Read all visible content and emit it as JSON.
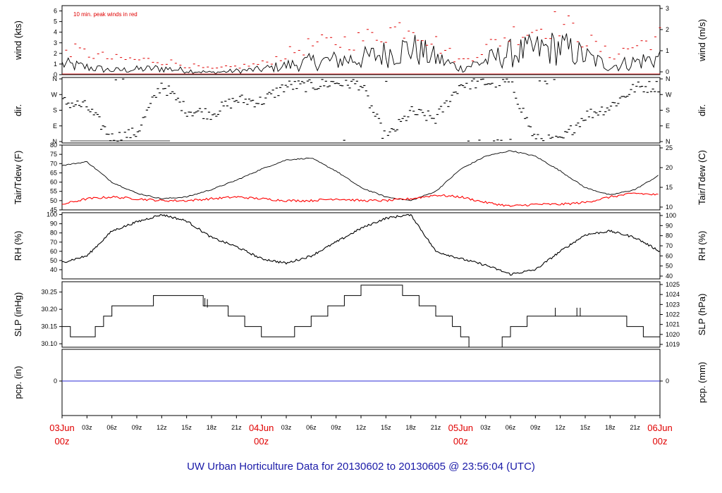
{
  "title": "UW Urban Horticulture Data for 20130602  to  20130605 @ 23:56:04  (UTC)",
  "annotation": "10 min. peak winds in red",
  "colors": {
    "main": "#000000",
    "peak": "#e00000",
    "dewpoint": "#ff0000",
    "precip": "#2b2bd6",
    "title": "#1a1aa8",
    "day": "#e00000"
  },
  "x_axis": {
    "hour_labels": [
      "03z",
      "06z",
      "09z",
      "12z",
      "15z",
      "18z",
      "21z"
    ],
    "days": [
      {
        "date": "03Jun",
        "time": "00z"
      },
      {
        "date": "04Jun",
        "time": "00z"
      },
      {
        "date": "05Jun",
        "time": "00z"
      },
      {
        "date": "06Jun",
        "time": "00z"
      }
    ]
  },
  "chart_data": [
    {
      "id": "wind",
      "type": "line",
      "ylabel_left": "wind (kts)",
      "ylabel_right": "wind (m/s)",
      "left_ticks": [
        "0",
        "1",
        "2",
        "3",
        "4",
        "5",
        "6"
      ],
      "right_ticks": [
        "0",
        "1",
        "2",
        "3"
      ],
      "ylim": [
        0,
        6.5
      ],
      "x_hours": [
        0,
        6,
        12,
        18,
        24,
        30,
        36,
        42,
        48,
        54,
        60,
        66,
        72
      ],
      "series": [
        {
          "values": [
            1.0,
            0.4,
            0.6,
            0.2,
            0.5,
            1.2,
            1.5,
            2.5,
            0.6,
            2.0,
            2.6,
            0.8,
            1.6
          ]
        },
        {
          "values": [
            2.5,
            1.5,
            1.3,
            0.5,
            1.0,
            2.8,
            3.3,
            4.8,
            1.2,
            3.8,
            4.9,
            1.8,
            3.6
          ]
        }
      ]
    },
    {
      "id": "dir",
      "type": "scatter",
      "ylabel_left": "dir.",
      "ylabel_right": "dir.",
      "left_ticks": [
        "N",
        "E",
        "S",
        "W",
        "N"
      ],
      "right_ticks": [
        "N",
        "E",
        "S",
        "W",
        "N"
      ],
      "ylim": [
        0,
        360
      ],
      "x_hours": [
        0,
        3,
        6,
        9,
        12,
        15,
        18,
        21,
        24,
        27,
        30,
        33,
        36,
        39,
        42,
        45,
        48,
        51,
        54,
        57,
        60,
        63,
        66,
        69,
        72
      ],
      "values": [
        230,
        200,
        20,
        50,
        330,
        180,
        160,
        240,
        230,
        320,
        320,
        340,
        330,
        10,
        170,
        130,
        330,
        340,
        340,
        10,
        0,
        150,
        200,
        310,
        320
      ]
    },
    {
      "id": "temp",
      "type": "line",
      "ylabel_left": "Tair/Tdew (F)",
      "ylabel_right": "Tair/Tdew (C)",
      "left_ticks": [
        "45",
        "50",
        "55",
        "60",
        "65",
        "70",
        "75",
        "80"
      ],
      "right_ticks": [
        "10",
        "15",
        "20",
        "25"
      ],
      "ylim": [
        45,
        80
      ],
      "x_hours": [
        0,
        3,
        6,
        9,
        12,
        15,
        18,
        21,
        24,
        27,
        30,
        33,
        36,
        39,
        42,
        45,
        48,
        51,
        54,
        57,
        60,
        63,
        66,
        69,
        72
      ],
      "series": [
        {
          "name": "Tair",
          "values": [
            69,
            71,
            60,
            54,
            51,
            52,
            56,
            61,
            67,
            72,
            73,
            66,
            57,
            52,
            50,
            55,
            67,
            74,
            77,
            74,
            66,
            57,
            53,
            56,
            64
          ]
        },
        {
          "name": "Tdew",
          "values": [
            48,
            51,
            52,
            51,
            50,
            50,
            51,
            52,
            51,
            50,
            50,
            51,
            50,
            50,
            51,
            53,
            52,
            49,
            47,
            48,
            48,
            49,
            52,
            54,
            53
          ]
        }
      ]
    },
    {
      "id": "rh",
      "type": "line",
      "ylabel_left": "RH (%)",
      "ylabel_right": "RH (%)",
      "left_ticks": [
        "40",
        "50",
        "60",
        "70",
        "80",
        "90",
        "100"
      ],
      "right_ticks": [
        "40",
        "50",
        "60",
        "70",
        "80",
        "90",
        "100"
      ],
      "ylim": [
        30,
        102
      ],
      "x_hours": [
        0,
        3,
        6,
        9,
        12,
        15,
        18,
        21,
        24,
        27,
        30,
        33,
        36,
        39,
        42,
        45,
        48,
        51,
        54,
        57,
        60,
        63,
        66,
        69,
        72
      ],
      "values": [
        48,
        55,
        82,
        92,
        100,
        93,
        75,
        65,
        52,
        47,
        55,
        70,
        85,
        96,
        100,
        60,
        52,
        45,
        35,
        40,
        60,
        78,
        82,
        75,
        60
      ]
    },
    {
      "id": "slp",
      "type": "line",
      "ylabel_left": "SLP (inHg)",
      "ylabel_right": "SLP (hPa)",
      "left_ticks": [
        "30.10",
        "30.15",
        "30.20",
        "30.25"
      ],
      "right_ticks": [
        "1019",
        "1020",
        "1021",
        "1022",
        "1023",
        "1024",
        "1025"
      ],
      "ylim": [
        30.09,
        30.28
      ],
      "x_hours": [
        0,
        1,
        3,
        4,
        5,
        6,
        11,
        17,
        20,
        22,
        24,
        26,
        28,
        30,
        32,
        34,
        36,
        39,
        41,
        43,
        45,
        47,
        48,
        49,
        52,
        53,
        54,
        56,
        58,
        60,
        65,
        68,
        70,
        72
      ],
      "values": [
        30.15,
        30.12,
        30.12,
        30.15,
        30.18,
        30.21,
        30.24,
        30.21,
        30.18,
        30.15,
        30.12,
        30.12,
        30.15,
        30.18,
        30.21,
        30.24,
        30.27,
        30.27,
        30.24,
        30.21,
        30.18,
        30.15,
        30.12,
        30.09,
        30.09,
        30.12,
        30.15,
        30.18,
        30.18,
        30.18,
        30.18,
        30.15,
        30.12,
        30.12
      ]
    },
    {
      "id": "pcp",
      "type": "line",
      "ylabel_left": "pcp. (in)",
      "ylabel_right": "pcp. (mm)",
      "left_ticks": [
        "0"
      ],
      "right_ticks": [
        "0"
      ],
      "ylim": [
        -1,
        1
      ],
      "x_hours": [
        0,
        72
      ],
      "values": [
        0,
        0
      ]
    }
  ]
}
